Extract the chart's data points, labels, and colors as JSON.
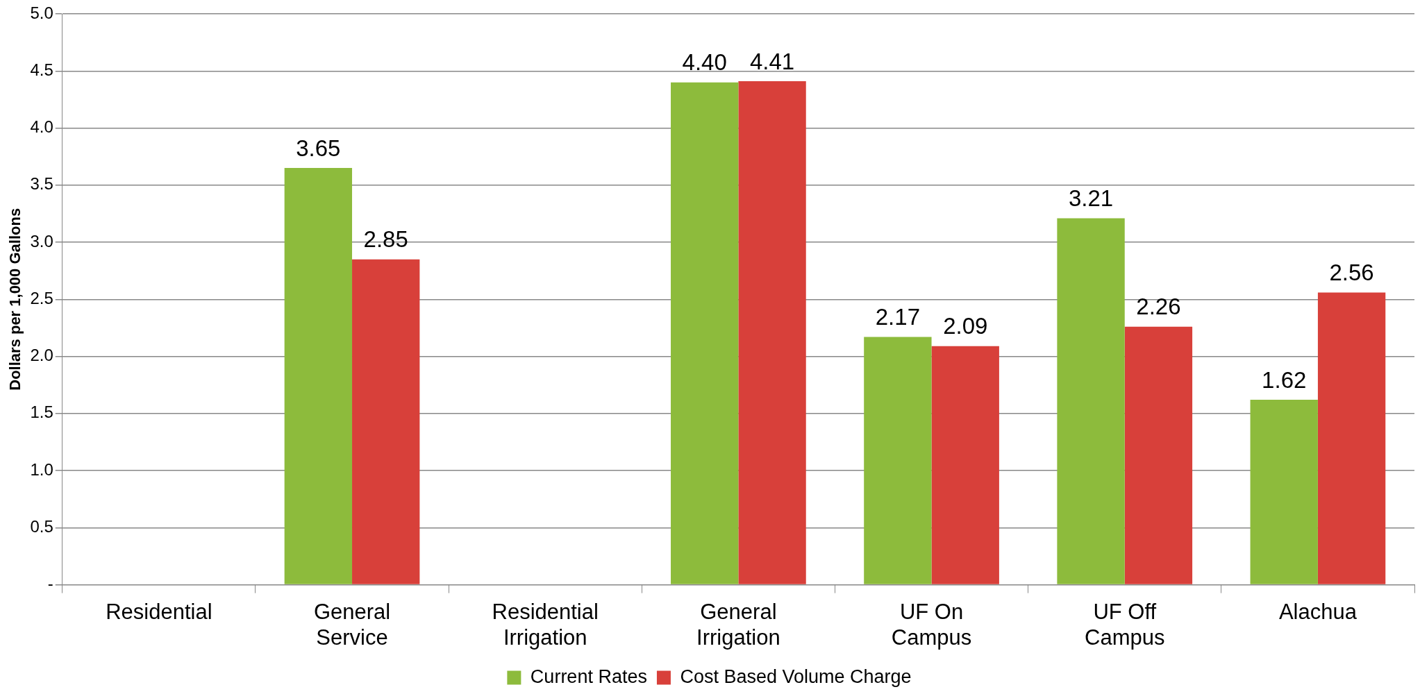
{
  "chart_data": {
    "type": "bar",
    "ylabel": "Dollars per 1,000 Gallons",
    "categories": [
      "Residential",
      "General\nService",
      "Residential\nIrrigation",
      "General\nIrrigation",
      "UF On\nCampus",
      "UF Off\nCampus",
      "Alachua"
    ],
    "series": [
      {
        "name": "Current Rates",
        "color": "#8dbb3c",
        "values": [
          null,
          3.65,
          null,
          4.4,
          2.17,
          3.21,
          1.62
        ],
        "value_labels": [
          null,
          "3.65",
          null,
          "4.40",
          "2.17",
          "3.21",
          "1.62"
        ]
      },
      {
        "name": "Cost Based Volume Charge",
        "color": "#d8403a",
        "values": [
          null,
          2.85,
          null,
          4.41,
          2.09,
          2.26,
          2.56
        ],
        "value_labels": [
          null,
          "2.85",
          null,
          "4.41",
          "2.09",
          "2.26",
          "2.56"
        ]
      }
    ],
    "ylim": [
      0,
      5
    ],
    "yticks": [
      {
        "value": 0,
        "label": "-"
      },
      {
        "value": 0.5,
        "label": "0.5"
      },
      {
        "value": 1,
        "label": "1.0"
      },
      {
        "value": 1.5,
        "label": "1.5"
      },
      {
        "value": 2,
        "label": "2.0"
      },
      {
        "value": 2.5,
        "label": "2.5"
      },
      {
        "value": 3,
        "label": "3.0"
      },
      {
        "value": 3.5,
        "label": "3.5"
      },
      {
        "value": 4,
        "label": "4.0"
      },
      {
        "value": 4.5,
        "label": "4.5"
      },
      {
        "value": 5,
        "label": "5.0"
      }
    ],
    "grid": "y",
    "legend": "bottom"
  }
}
